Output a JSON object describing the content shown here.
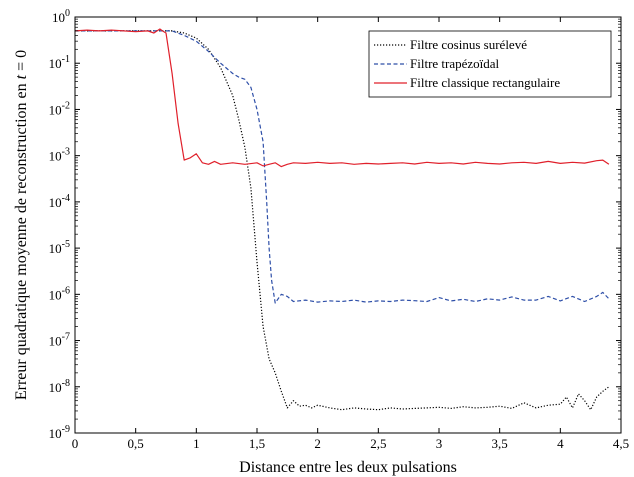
{
  "chart_data": {
    "type": "line",
    "title": "",
    "xlabel": "Distance entre les deux pulsations",
    "ylabel_parts": [
      "Erreur quadratique moyenne de reconstruction en ",
      "t",
      " = 0"
    ],
    "xlim": [
      0,
      4.5
    ],
    "ylim": [
      1e-09,
      1
    ],
    "yscale": "log",
    "grid": false,
    "legend_position": "top-right",
    "xticks": [
      0,
      0.5,
      1,
      1.5,
      2,
      2.5,
      3,
      3.5,
      4,
      4.5
    ],
    "xtick_labels": [
      "0",
      "0,5",
      "1",
      "1,5",
      "2",
      "2,5",
      "3",
      "3,5",
      "4",
      "4,5"
    ],
    "yticks": [
      {
        "value": 1e-09,
        "base": "10",
        "exp": "-9"
      },
      {
        "value": 1e-08,
        "base": "10",
        "exp": "-8"
      },
      {
        "value": 1e-07,
        "base": "10",
        "exp": "-7"
      },
      {
        "value": 1e-06,
        "base": "10",
        "exp": "-6"
      },
      {
        "value": 1e-05,
        "base": "10",
        "exp": "-5"
      },
      {
        "value": 0.0001,
        "base": "10",
        "exp": "-4"
      },
      {
        "value": 0.001,
        "base": "10",
        "exp": "-3"
      },
      {
        "value": 0.01,
        "base": "10",
        "exp": "-2"
      },
      {
        "value": 0.1,
        "base": "10",
        "exp": "-1"
      },
      {
        "value": 1,
        "base": "10",
        "exp": "0"
      }
    ],
    "series": [
      {
        "name": "Filtre cosinus surélevé",
        "color": "#000000",
        "style": "dotted",
        "x": [
          0,
          0.2,
          0.4,
          0.6,
          0.8,
          0.9,
          1.0,
          1.1,
          1.2,
          1.3,
          1.35,
          1.4,
          1.45,
          1.5,
          1.55,
          1.6,
          1.65,
          1.7,
          1.75,
          1.8,
          1.85,
          1.9,
          1.95,
          2.0,
          2.1,
          2.2,
          2.3,
          2.4,
          2.5,
          2.6,
          2.7,
          2.8,
          2.9,
          3.0,
          3.1,
          3.2,
          3.3,
          3.4,
          3.5,
          3.6,
          3.7,
          3.8,
          3.9,
          4.0,
          4.05,
          4.1,
          4.15,
          4.2,
          4.25,
          4.3,
          4.35,
          4.4
        ],
        "y": [
          0.5,
          0.5,
          0.5,
          0.5,
          0.5,
          0.45,
          0.35,
          0.2,
          0.08,
          0.02,
          0.006,
          0.0015,
          0.0002,
          5e-06,
          2e-07,
          4e-08,
          2e-08,
          8e-09,
          3.5e-09,
          5e-09,
          3.8e-09,
          4e-09,
          3.5e-09,
          4e-09,
          3.5e-09,
          3.2e-09,
          3.5e-09,
          3.3e-09,
          3.2e-09,
          3.5e-09,
          3.3e-09,
          3.4e-09,
          3.5e-09,
          3.6e-09,
          3.4e-09,
          3.7e-09,
          3.5e-09,
          3.6e-09,
          3.8e-09,
          3.4e-09,
          4.5e-09,
          3.5e-09,
          4e-09,
          4.2e-09,
          6e-09,
          3.5e-09,
          7e-09,
          5e-09,
          3.2e-09,
          6e-09,
          8e-09,
          1e-08
        ]
      },
      {
        "name": "Filtre trapézoïdal",
        "color": "#2e4fa8",
        "style": "dashed",
        "x": [
          0,
          0.2,
          0.4,
          0.6,
          0.8,
          0.9,
          1.0,
          1.1,
          1.2,
          1.3,
          1.35,
          1.4,
          1.45,
          1.5,
          1.55,
          1.58,
          1.6,
          1.62,
          1.65,
          1.7,
          1.75,
          1.8,
          1.9,
          2.0,
          2.1,
          2.2,
          2.3,
          2.4,
          2.5,
          2.6,
          2.7,
          2.8,
          2.9,
          3.0,
          3.1,
          3.2,
          3.3,
          3.4,
          3.5,
          3.6,
          3.7,
          3.8,
          3.9,
          4.0,
          4.1,
          4.2,
          4.3,
          4.35,
          4.4
        ],
        "y": [
          0.5,
          0.5,
          0.5,
          0.5,
          0.5,
          0.4,
          0.3,
          0.18,
          0.1,
          0.06,
          0.05,
          0.045,
          0.03,
          0.01,
          0.002,
          0.0001,
          1e-05,
          2e-06,
          6.5e-07,
          1e-06,
          9e-07,
          7e-07,
          7.5e-07,
          6.8e-07,
          7.2e-07,
          7e-07,
          7.5e-07,
          6.8e-07,
          7.2e-07,
          7e-07,
          7.5e-07,
          7.3e-07,
          7e-07,
          8.5e-07,
          7.2e-07,
          7.8e-07,
          7e-07,
          8e-07,
          7.5e-07,
          8.8e-07,
          7.5e-07,
          7.5e-07,
          9e-07,
          7.2e-07,
          9e-07,
          7e-07,
          9e-07,
          1.1e-06,
          8e-07
        ]
      },
      {
        "name": "Filtre classique rectangulaire",
        "color": "#e0202b",
        "style": "solid",
        "x": [
          0,
          0.1,
          0.2,
          0.3,
          0.4,
          0.5,
          0.6,
          0.65,
          0.7,
          0.72,
          0.75,
          0.8,
          0.85,
          0.9,
          0.95,
          1.0,
          1.05,
          1.1,
          1.15,
          1.2,
          1.3,
          1.4,
          1.5,
          1.55,
          1.6,
          1.65,
          1.7,
          1.75,
          1.8,
          1.9,
          2.0,
          2.1,
          2.2,
          2.3,
          2.4,
          2.5,
          2.6,
          2.7,
          2.8,
          2.9,
          3.0,
          3.1,
          3.2,
          3.3,
          3.4,
          3.5,
          3.6,
          3.7,
          3.8,
          3.9,
          4.0,
          4.1,
          4.2,
          4.3,
          4.35,
          4.4
        ],
        "y": [
          0.5,
          0.52,
          0.5,
          0.52,
          0.5,
          0.48,
          0.5,
          0.45,
          0.55,
          0.5,
          0.45,
          0.06,
          0.005,
          0.0008,
          0.0009,
          0.0011,
          0.0007,
          0.00065,
          0.00075,
          0.00065,
          0.0007,
          0.00065,
          0.0007,
          0.0006,
          0.00065,
          0.0007,
          0.00058,
          0.00065,
          0.0007,
          0.00068,
          0.00072,
          0.00068,
          0.0007,
          0.00065,
          0.00068,
          0.00066,
          0.00068,
          0.0007,
          0.00066,
          0.00072,
          0.00068,
          0.0007,
          0.00066,
          0.00072,
          0.00068,
          0.00066,
          0.0007,
          0.00072,
          0.00068,
          0.00075,
          0.00068,
          0.00072,
          0.00069,
          0.00078,
          0.0008,
          0.00065
        ]
      }
    ]
  }
}
